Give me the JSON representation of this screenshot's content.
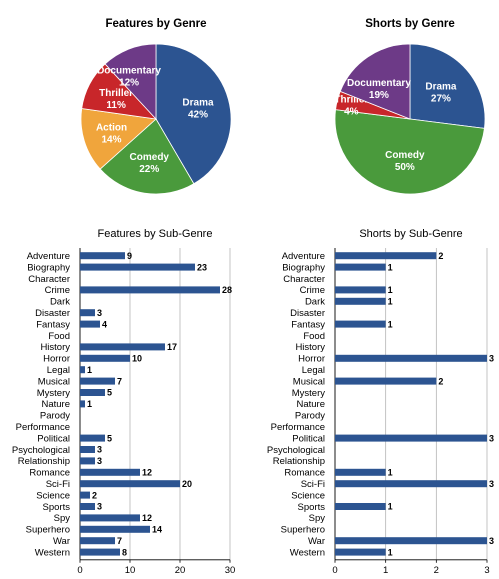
{
  "chart_data": [
    {
      "type": "pie",
      "title": "Features by Genre",
      "slices": [
        {
          "label": "Drama",
          "value": 42,
          "display": "42%",
          "color": "#2c5491"
        },
        {
          "label": "Comedy",
          "value": 22,
          "display": "22%",
          "color": "#4a9a3c"
        },
        {
          "label": "Action",
          "value": 14,
          "display": "14%",
          "color": "#f0a53c"
        },
        {
          "label": "Thriller",
          "value": 11,
          "display": "11%",
          "color": "#c8262a"
        },
        {
          "label": "Documentary",
          "value": 12,
          "display": "12%",
          "color": "#6d3a87"
        }
      ]
    },
    {
      "type": "pie",
      "title": "Shorts by Genre",
      "slices": [
        {
          "label": "Drama",
          "value": 27,
          "display": "27%",
          "color": "#2c5491"
        },
        {
          "label": "Comedy",
          "value": 50,
          "display": "50%",
          "color": "#4a9a3c"
        },
        {
          "label": "Thriller",
          "value": 4,
          "display": "4%",
          "color": "#c8262a"
        },
        {
          "label": "Documentary",
          "value": 19,
          "display": "19%",
          "color": "#6d3a87"
        }
      ]
    },
    {
      "type": "bar",
      "orientation": "horizontal",
      "title": "Features by Sub-Genre",
      "categories": [
        "Adventure",
        "Biography",
        "Character",
        "Crime",
        "Dark",
        "Disaster",
        "Fantasy",
        "Food",
        "History",
        "Horror",
        "Legal",
        "Musical",
        "Mystery",
        "Nature",
        "Parody",
        "Performance",
        "Political",
        "Psychological",
        "Relationship",
        "Romance",
        "Sci-Fi",
        "Science",
        "Sports",
        "Spy",
        "Superhero",
        "War",
        "Western"
      ],
      "values": [
        9,
        23,
        0,
        28,
        0,
        3,
        4,
        0,
        17,
        10,
        1,
        7,
        5,
        1,
        0,
        0,
        5,
        3,
        3,
        12,
        20,
        2,
        3,
        12,
        14,
        7,
        8
      ],
      "xlim": [
        0,
        30
      ],
      "xticks": [
        "0",
        "10",
        "20",
        "30"
      ],
      "bar_color": "#2c5491",
      "grid": true
    },
    {
      "type": "bar",
      "orientation": "horizontal",
      "title": "Shorts by Sub-Genre",
      "categories": [
        "Adventure",
        "Biography",
        "Character",
        "Crime",
        "Dark",
        "Disaster",
        "Fantasy",
        "Food",
        "History",
        "Horror",
        "Legal",
        "Musical",
        "Mystery",
        "Nature",
        "Parody",
        "Performance",
        "Political",
        "Psychological",
        "Relationship",
        "Romance",
        "Sci-Fi",
        "Science",
        "Sports",
        "Spy",
        "Superhero",
        "War",
        "Western"
      ],
      "values": [
        2,
        1,
        0,
        1,
        1,
        0,
        1,
        0,
        0,
        3,
        0,
        2,
        0,
        0,
        0,
        0,
        3,
        0,
        0,
        1,
        3,
        0,
        1,
        0,
        0,
        3,
        1
      ],
      "xlim": [
        0,
        3
      ],
      "xticks": [
        "0",
        "1",
        "2",
        "3"
      ],
      "bar_color": "#2c5491",
      "grid": true
    }
  ]
}
